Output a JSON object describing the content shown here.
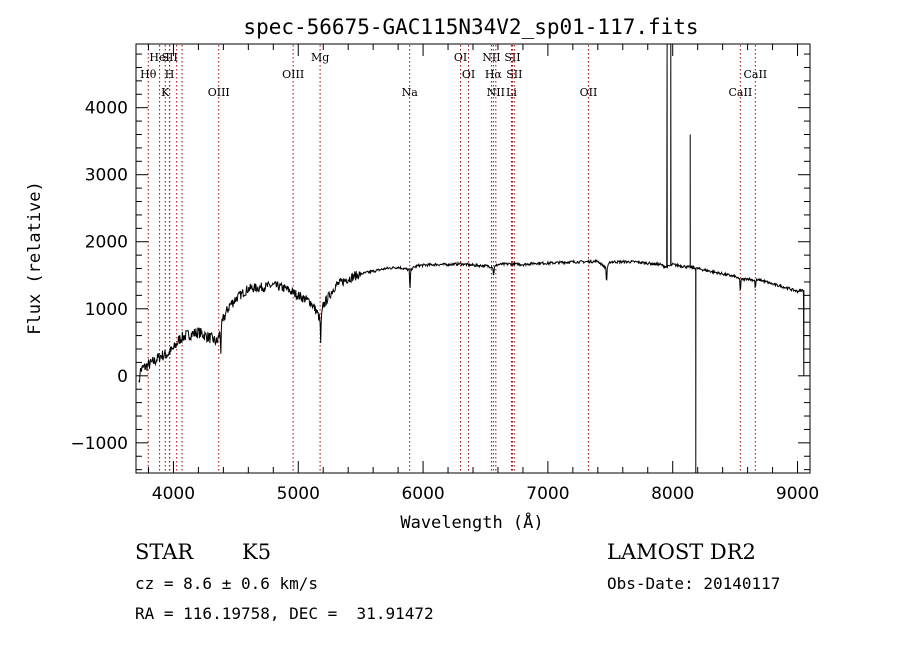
{
  "chart_data": {
    "type": "line",
    "title": "spec-56675-GAC115N34V2_sp01-117.fits",
    "xlabel": "Wavelength (Å)",
    "ylabel": "Flux (relative)",
    "xlim": [
      3700,
      9100
    ],
    "ylim": [
      -1450,
      4950
    ],
    "xticks": [
      4000,
      5000,
      6000,
      7000,
      8000,
      9000
    ],
    "yticks": [
      -1000,
      0,
      1000,
      2000,
      3000,
      4000
    ],
    "grid": false,
    "line_color": "#000000",
    "marker_color": "#aa0000",
    "spectral_lines": [
      {
        "name": "Hθ",
        "wavelength": 3798,
        "row": 2
      },
      {
        "name": "HeI",
        "wavelength": 3889,
        "row": 1
      },
      {
        "name": "K",
        "wavelength": 3934,
        "row": 3
      },
      {
        "name": "SII",
        "wavelength": 3970,
        "row": 1
      },
      {
        "name": "H",
        "wavelength": 3969,
        "row": 2
      },
      {
        "name": "",
        "wavelength": 4026,
        "row": 0
      },
      {
        "name": "",
        "wavelength": 4069,
        "row": 0
      },
      {
        "name": "OIII",
        "wavelength": 4363,
        "row": 3
      },
      {
        "name": "OIII",
        "wavelength": 4959,
        "row": 2
      },
      {
        "name": "Mg",
        "wavelength": 5175,
        "row": 1
      },
      {
        "name": "Na",
        "wavelength": 5893,
        "row": 3
      },
      {
        "name": "OI",
        "wavelength": 6300,
        "row": 1
      },
      {
        "name": "OI",
        "wavelength": 6364,
        "row": 2
      },
      {
        "name": "NII",
        "wavelength": 6548,
        "row": 1
      },
      {
        "name": "Hα",
        "wavelength": 6563,
        "row": 2
      },
      {
        "name": "NII",
        "wavelength": 6583,
        "row": 3
      },
      {
        "name": "SII",
        "wavelength": 6716,
        "row": 1
      },
      {
        "name": "SII",
        "wavelength": 6731,
        "row": 2
      },
      {
        "name": "Li",
        "wavelength": 6708,
        "row": 3
      },
      {
        "name": "OII",
        "wavelength": 7325,
        "row": 3
      },
      {
        "name": "CaII",
        "wavelength": 8542,
        "row": 3
      },
      {
        "name": "CaII",
        "wavelength": 8662,
        "row": 2
      }
    ],
    "spectrum_anchors": {
      "x": [
        3720,
        3760,
        3800,
        3850,
        3900,
        3950,
        4000,
        4050,
        4100,
        4200,
        4300,
        4350,
        4400,
        4450,
        4500,
        4600,
        4700,
        4800,
        4900,
        5000,
        5100,
        5150,
        5180,
        5200,
        5250,
        5300,
        5400,
        5500,
        5600,
        5700,
        5800,
        5893,
        5950,
        6000,
        6100,
        6200,
        6300,
        6400,
        6500,
        6563,
        6600,
        6700,
        6800,
        6900,
        7000,
        7100,
        7200,
        7300,
        7400,
        7470,
        7500,
        7600,
        7700,
        7800,
        7900,
        7950,
        8000,
        8100,
        8200,
        8300,
        8400,
        8500,
        8542,
        8600,
        8662,
        8700,
        8800,
        8900,
        9000,
        9050
      ],
      "y": [
        50,
        120,
        160,
        220,
        300,
        320,
        400,
        550,
        600,
        650,
        560,
        500,
        850,
        1050,
        1150,
        1300,
        1320,
        1350,
        1300,
        1200,
        1100,
        950,
        800,
        1050,
        1200,
        1350,
        1450,
        1520,
        1560,
        1600,
        1620,
        1580,
        1640,
        1650,
        1660,
        1660,
        1670,
        1650,
        1640,
        1620,
        1660,
        1670,
        1660,
        1680,
        1680,
        1690,
        1700,
        1700,
        1710,
        1600,
        1700,
        1700,
        1700,
        1680,
        1660,
        1620,
        1660,
        1630,
        1600,
        1560,
        1520,
        1480,
        1430,
        1450,
        1420,
        1430,
        1370,
        1320,
        1260,
        1280
      ]
    },
    "features": [
      {
        "type": "absorption",
        "x": 3725,
        "depth": 250
      },
      {
        "type": "absorption",
        "x": 4380,
        "depth": 350
      },
      {
        "type": "absorption",
        "x": 5180,
        "depth": 300
      },
      {
        "type": "absorption",
        "x": 5895,
        "depth": 350
      },
      {
        "type": "absorption",
        "x": 6565,
        "depth": 150
      },
      {
        "type": "absorption",
        "x": 7470,
        "depth": 250
      },
      {
        "type": "absorption",
        "x": 8542,
        "depth": 200
      },
      {
        "type": "absorption",
        "x": 8662,
        "depth": 150
      },
      {
        "type": "spike",
        "x": 7955,
        "peak": 4950
      },
      {
        "type": "spike",
        "x": 7985,
        "peak": 4950
      },
      {
        "type": "spike",
        "x": 8140,
        "peak": 3600
      },
      {
        "type": "spike",
        "x": 8185,
        "peak": -1450
      },
      {
        "type": "spike",
        "x": 9050,
        "peak": 0
      }
    ]
  },
  "info": {
    "object": "STAR",
    "subclass": "K5",
    "cz": "cz = 8.6 ± 0.6 km/s",
    "coords": "RA = 116.19758, DEC =  31.91472",
    "survey": "LAMOST DR2",
    "obs_date": "Obs-Date: 20140117"
  }
}
